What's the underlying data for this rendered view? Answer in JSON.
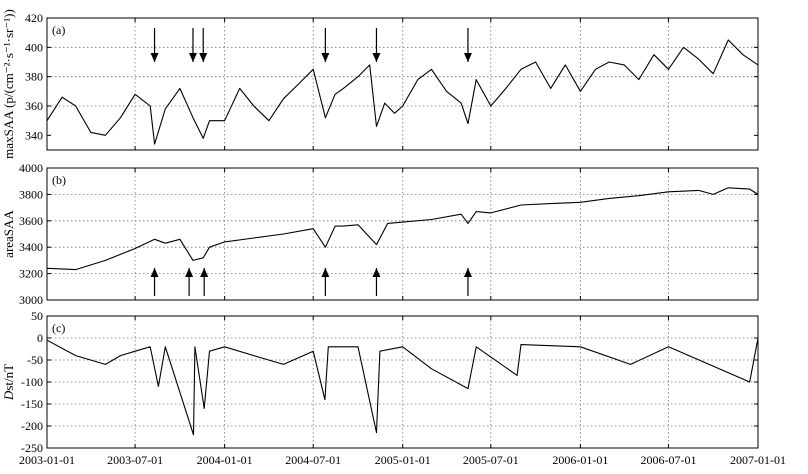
{
  "chart_data": [
    {
      "type": "line",
      "panel_label": "(a)",
      "ylabel": "maxSAA (p/(cm⁻²·s⁻¹·sr⁻¹))",
      "ylim": [
        330,
        420
      ],
      "yticks": [
        340,
        360,
        380,
        400,
        420
      ],
      "xlim": [
        "2003-01-01",
        "2007-01-01"
      ],
      "grid": true,
      "arrow_direction": "down",
      "arrows_x": [
        "2003-08-10",
        "2003-10-28",
        "2003-11-18",
        "2004-07-26",
        "2004-11-08",
        "2005-05-15"
      ],
      "series": [
        {
          "x": [
            "2003-01-01",
            "2003-02-01",
            "2003-03-01",
            "2003-04-01",
            "2003-05-01",
            "2003-06-01",
            "2003-07-01",
            "2003-08-01",
            "2003-08-10",
            "2003-09-01",
            "2003-10-01",
            "2003-10-28",
            "2003-11-18",
            "2003-12-01",
            "2004-01-01",
            "2004-02-01",
            "2004-03-01",
            "2004-04-01",
            "2004-05-01",
            "2004-06-01",
            "2004-07-01",
            "2004-07-26",
            "2004-08-15",
            "2004-09-01",
            "2004-10-01",
            "2004-10-25",
            "2004-11-08",
            "2004-11-25",
            "2004-12-15",
            "2005-01-01",
            "2005-02-01",
            "2005-03-01",
            "2005-04-01",
            "2005-05-01",
            "2005-05-15",
            "2005-06-01",
            "2005-07-01",
            "2005-08-01",
            "2005-09-01",
            "2005-10-01",
            "2005-11-01",
            "2005-12-01",
            "2006-01-01",
            "2006-02-01",
            "2006-03-01",
            "2006-04-01",
            "2006-05-01",
            "2006-06-01",
            "2006-07-01",
            "2006-08-01",
            "2006-09-01",
            "2006-10-01",
            "2006-11-01",
            "2006-12-01",
            "2007-01-01"
          ],
          "values": [
            350,
            366,
            360,
            342,
            340,
            352,
            368,
            360,
            334,
            358,
            372,
            352,
            338,
            350,
            350,
            372,
            360,
            350,
            365,
            375,
            385,
            352,
            368,
            372,
            380,
            388,
            346,
            362,
            355,
            360,
            378,
            385,
            370,
            362,
            348,
            378,
            360,
            372,
            385,
            390,
            372,
            388,
            370,
            385,
            390,
            388,
            378,
            395,
            385,
            400,
            392,
            382,
            405,
            395,
            388
          ]
        }
      ]
    },
    {
      "type": "line",
      "panel_label": "(b)",
      "ylabel": "areaSAA",
      "ylim": [
        3000,
        4000
      ],
      "yticks": [
        3000,
        3200,
        3400,
        3600,
        3800,
        4000
      ],
      "xlim": [
        "2003-01-01",
        "2007-01-01"
      ],
      "grid": true,
      "arrow_direction": "up",
      "arrows_x": [
        "2003-08-10",
        "2003-10-20",
        "2003-11-20",
        "2004-07-26",
        "2004-11-08",
        "2005-05-15"
      ],
      "series": [
        {
          "x": [
            "2003-01-01",
            "2003-03-01",
            "2003-05-01",
            "2003-07-01",
            "2003-08-10",
            "2003-09-01",
            "2003-10-01",
            "2003-10-28",
            "2003-11-18",
            "2003-12-01",
            "2004-01-01",
            "2004-03-01",
            "2004-05-01",
            "2004-07-01",
            "2004-07-26",
            "2004-08-15",
            "2004-09-01",
            "2004-10-01",
            "2004-11-08",
            "2004-12-01",
            "2005-01-01",
            "2005-03-01",
            "2005-05-01",
            "2005-05-15",
            "2005-06-01",
            "2005-07-01",
            "2005-09-01",
            "2005-11-01",
            "2006-01-01",
            "2006-03-01",
            "2006-05-01",
            "2006-07-01",
            "2006-09-01",
            "2006-10-01",
            "2006-11-01",
            "2006-12-15",
            "2007-01-01"
          ],
          "values": [
            3240,
            3230,
            3300,
            3390,
            3460,
            3430,
            3460,
            3300,
            3320,
            3400,
            3440,
            3470,
            3500,
            3540,
            3400,
            3560,
            3560,
            3570,
            3420,
            3580,
            3590,
            3610,
            3650,
            3580,
            3670,
            3660,
            3720,
            3730,
            3740,
            3770,
            3790,
            3820,
            3830,
            3800,
            3850,
            3840,
            3800
          ]
        }
      ]
    },
    {
      "type": "line",
      "panel_label": "(c)",
      "ylabel": "Dst/nT",
      "ylim": [
        -250,
        50
      ],
      "yticks": [
        -250,
        -200,
        -150,
        -100,
        -50,
        0,
        50
      ],
      "xlim": [
        "2003-01-01",
        "2007-01-01"
      ],
      "xticks": [
        "2003-01-01",
        "2003-07-01",
        "2004-01-01",
        "2004-07-01",
        "2005-01-01",
        "2005-07-01",
        "2006-01-01",
        "2006-07-01",
        "2007-01-01"
      ],
      "grid": true,
      "series": [
        {
          "x": [
            "2003-01-01",
            "2003-03-01",
            "2003-05-01",
            "2003-06-01",
            "2003-07-01",
            "2003-08-01",
            "2003-08-18",
            "2003-09-01",
            "2003-10-29",
            "2003-11-01",
            "2003-11-20",
            "2003-12-01",
            "2004-01-01",
            "2004-03-01",
            "2004-05-01",
            "2004-07-01",
            "2004-07-25",
            "2004-08-01",
            "2004-10-01",
            "2004-11-08",
            "2004-11-15",
            "2005-01-01",
            "2005-03-01",
            "2005-05-15",
            "2005-06-01",
            "2005-08-24",
            "2005-09-01",
            "2006-01-01",
            "2006-04-14",
            "2006-07-01",
            "2006-12-15",
            "2007-01-01"
          ],
          "values": [
            -5,
            -40,
            -60,
            -40,
            -30,
            -20,
            -110,
            -20,
            -220,
            -20,
            -160,
            -30,
            -20,
            -40,
            -60,
            -30,
            -140,
            -20,
            -20,
            -215,
            -30,
            -20,
            -70,
            -115,
            -20,
            -85,
            -15,
            -20,
            -60,
            -20,
            -100,
            0
          ]
        }
      ]
    }
  ]
}
